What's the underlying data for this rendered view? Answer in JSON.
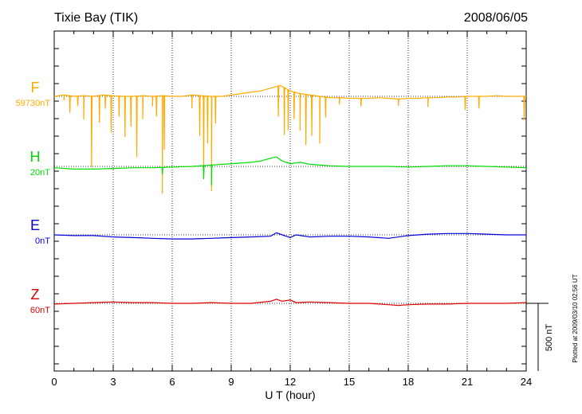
{
  "header": {
    "station": "Tixie Bay (TIK)",
    "date": "2008/06/05"
  },
  "footer": {
    "plotted_note": "Plotted at 2009/03/10 02:56 UT"
  },
  "chart_data": {
    "type": "line",
    "title": "Tixie Bay (TIK)",
    "date": "2008/06/05",
    "xlabel": "U T (hour)",
    "xlim": [
      0,
      24
    ],
    "x_ticks": [
      "0",
      "3",
      "6",
      "9",
      "12",
      "15",
      "18",
      "21",
      "24"
    ],
    "scale_bar": "500 nT",
    "grid": "dotted vertical lines every 3 h; dotted baseline per component",
    "series": [
      {
        "name": "F",
        "baseline": "59730nT",
        "color": "#ffaa00",
        "x": [
          0,
          0.5,
          1,
          1.5,
          2,
          2.5,
          3,
          3.5,
          4,
          4.5,
          5,
          5.5,
          6,
          6.5,
          7,
          7.5,
          8,
          8.5,
          9,
          9.5,
          10,
          10.5,
          11,
          11.5,
          12,
          12.5,
          13,
          13.5,
          14,
          14.5,
          15,
          15.5,
          16,
          16.5,
          17,
          17.5,
          18,
          18.5,
          19,
          19.5,
          20,
          20.5,
          21,
          21.5,
          22,
          22.5,
          23,
          23.5,
          24
        ],
        "values": [
          0,
          2,
          0,
          1,
          0,
          2,
          1,
          0,
          0,
          1,
          0,
          1,
          0,
          0,
          2,
          1,
          0,
          0,
          2,
          4,
          6,
          8,
          12,
          16,
          8,
          4,
          2,
          0,
          -2,
          -2,
          -3,
          -3,
          -3,
          -2,
          -3,
          -4,
          -3,
          -3,
          -2,
          -2,
          -1,
          -1,
          0,
          0,
          0,
          1,
          0,
          0,
          0
        ],
        "dips": [
          {
            "x": 0.5,
            "dv": -8
          },
          {
            "x": 0.8,
            "dv": -25
          },
          {
            "x": 1.2,
            "dv": -15
          },
          {
            "x": 1.5,
            "dv": -35
          },
          {
            "x": 1.9,
            "dv": -105
          },
          {
            "x": 2.3,
            "dv": -40
          },
          {
            "x": 2.6,
            "dv": -20
          },
          {
            "x": 2.9,
            "dv": -55
          },
          {
            "x": 3.3,
            "dv": -30
          },
          {
            "x": 3.6,
            "dv": -60
          },
          {
            "x": 3.9,
            "dv": -45
          },
          {
            "x": 4.2,
            "dv": -90
          },
          {
            "x": 4.5,
            "dv": -35
          },
          {
            "x": 5.0,
            "dv": -15
          },
          {
            "x": 5.2,
            "dv": -30
          },
          {
            "x": 5.5,
            "dv": -145
          },
          {
            "x": 5.6,
            "dv": -80
          },
          {
            "x": 7.0,
            "dv": -20
          },
          {
            "x": 7.4,
            "dv": -60
          },
          {
            "x": 7.6,
            "dv": -110
          },
          {
            "x": 7.8,
            "dv": -70
          },
          {
            "x": 8.0,
            "dv": -140
          },
          {
            "x": 8.2,
            "dv": -40
          },
          {
            "x": 11.4,
            "dv": -45
          },
          {
            "x": 11.7,
            "dv": -70
          },
          {
            "x": 11.9,
            "dv": -60
          },
          {
            "x": 12.2,
            "dv": -40
          },
          {
            "x": 12.5,
            "dv": -55
          },
          {
            "x": 12.8,
            "dv": -75
          },
          {
            "x": 13.1,
            "dv": -60
          },
          {
            "x": 13.5,
            "dv": -70
          },
          {
            "x": 13.8,
            "dv": -30
          },
          {
            "x": 14.5,
            "dv": -10
          },
          {
            "x": 15.6,
            "dv": -12
          },
          {
            "x": 17.5,
            "dv": -10
          },
          {
            "x": 19.0,
            "dv": -14
          },
          {
            "x": 20.9,
            "dv": -20
          },
          {
            "x": 21.6,
            "dv": -18
          },
          {
            "x": 23.9,
            "dv": -35
          }
        ]
      },
      {
        "name": "H",
        "baseline": "20nT",
        "color": "#00dd00",
        "x": [
          0,
          1,
          2,
          3,
          4,
          5,
          6,
          7,
          8,
          9,
          10,
          10.5,
          11,
          11.3,
          11.6,
          12,
          12.5,
          13,
          14,
          15,
          16,
          17,
          18,
          19,
          20,
          21,
          22,
          23,
          24
        ],
        "values": [
          -2,
          -4,
          -4,
          -3,
          -2,
          -2,
          -1,
          0,
          2,
          4,
          6,
          8,
          12,
          14,
          8,
          4,
          6,
          3,
          1,
          0,
          0,
          0,
          -1,
          0,
          1,
          1,
          0,
          -1,
          -2
        ],
        "dips": [
          {
            "x": 5.5,
            "dv": -10
          },
          {
            "x": 7.6,
            "dv": -20
          },
          {
            "x": 8.0,
            "dv": -30
          }
        ]
      },
      {
        "name": "E",
        "baseline": "0nT",
        "color": "#0000dd",
        "x": [
          0,
          1,
          2,
          3,
          4,
          5,
          6,
          7,
          8,
          9,
          10,
          11,
          11.3,
          11.6,
          12,
          12.3,
          13,
          14,
          15,
          16,
          17,
          18,
          19,
          20,
          21,
          22,
          23,
          24
        ],
        "values": [
          0,
          -1,
          -1,
          -3,
          -4,
          -5,
          -6,
          -6,
          -5,
          -4,
          -3,
          -2,
          3,
          0,
          -4,
          0,
          -3,
          -2,
          -2,
          -3,
          -5,
          -1,
          1,
          2,
          2,
          1,
          0,
          0
        ]
      },
      {
        "name": "Z",
        "baseline": "60nT",
        "color": "#dd0000",
        "x": [
          0,
          1,
          2,
          3,
          4,
          5,
          6,
          7,
          8,
          9,
          10,
          11,
          11.3,
          11.6,
          12,
          12.3,
          13,
          14,
          15,
          16,
          17,
          17.5,
          18,
          19,
          20,
          21,
          22,
          23,
          24
        ],
        "values": [
          -1,
          0,
          1,
          2,
          1,
          1,
          0,
          0,
          1,
          0,
          0,
          3,
          6,
          3,
          5,
          1,
          2,
          1,
          0,
          0,
          -2,
          -3,
          -2,
          -1,
          -1,
          0,
          0,
          0,
          1
        ]
      }
    ]
  }
}
